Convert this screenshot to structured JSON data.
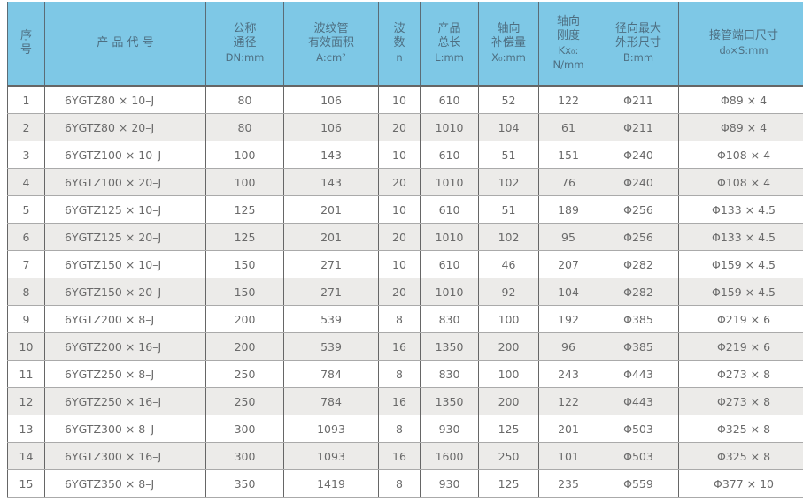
{
  "header": {
    "no": [
      "序",
      "号"
    ],
    "code": "产 品 代 号",
    "dn": [
      "公称",
      "通径",
      "DN:mm"
    ],
    "area": [
      "波纹管",
      "有效面积",
      "A:cm²"
    ],
    "waves": [
      "波",
      "数",
      "n"
    ],
    "length": [
      "产品",
      "总长",
      "L:mm"
    ],
    "comp": [
      "轴向",
      "补偿量",
      "X₀:mm"
    ],
    "stiff": [
      "轴向",
      "刚度",
      "Kx₀:",
      "N/mm"
    ],
    "outer": [
      "径向最大",
      "外形尺寸",
      "B:mm"
    ],
    "port": [
      "接管端口尺寸",
      "d₀×S:mm"
    ]
  },
  "rows": [
    [
      "1",
      "6YGTZ80 × 10–J",
      "80",
      "106",
      "10",
      "610",
      "52",
      "122",
      "Φ211",
      "Φ89 × 4"
    ],
    [
      "2",
      "6YGTZ80 × 20–J",
      "80",
      "106",
      "20",
      "1010",
      "104",
      "61",
      "Φ211",
      "Φ89 × 4"
    ],
    [
      "3",
      "6YGTZ100 × 10–J",
      "100",
      "143",
      "10",
      "610",
      "51",
      "151",
      "Φ240",
      "Φ108 × 4"
    ],
    [
      "4",
      "6YGTZ100 × 20–J",
      "100",
      "143",
      "20",
      "1010",
      "102",
      "76",
      "Φ240",
      "Φ108 × 4"
    ],
    [
      "5",
      "6YGTZ125 × 10–J",
      "125",
      "201",
      "10",
      "610",
      "51",
      "189",
      "Φ256",
      "Φ133 × 4.5"
    ],
    [
      "6",
      "6YGTZ125 × 20–J",
      "125",
      "201",
      "20",
      "1010",
      "102",
      "95",
      "Φ256",
      "Φ133 × 4.5"
    ],
    [
      "7",
      "6YGTZ150 × 10–J",
      "150",
      "271",
      "10",
      "610",
      "46",
      "207",
      "Φ282",
      "Φ159 × 4.5"
    ],
    [
      "8",
      "6YGTZ150 × 20–J",
      "150",
      "271",
      "20",
      "1010",
      "92",
      "104",
      "Φ282",
      "Φ159 × 4.5"
    ],
    [
      "9",
      "6YGTZ200 × 8–J",
      "200",
      "539",
      "8",
      "830",
      "100",
      "192",
      "Φ385",
      "Φ219 × 6"
    ],
    [
      "10",
      "6YGTZ200 × 16–J",
      "200",
      "539",
      "16",
      "1350",
      "200",
      "96",
      "Φ385",
      "Φ219 × 6"
    ],
    [
      "11",
      "6YGTZ250 × 8–J",
      "250",
      "784",
      "8",
      "830",
      "100",
      "243",
      "Φ443",
      "Φ273 × 8"
    ],
    [
      "12",
      "6YGTZ250 × 16–J",
      "250",
      "784",
      "16",
      "1350",
      "200",
      "122",
      "Φ443",
      "Φ273 × 8"
    ],
    [
      "13",
      "6YGTZ300 × 8–J",
      "300",
      "1093",
      "8",
      "930",
      "125",
      "201",
      "Φ503",
      "Φ325 × 8"
    ],
    [
      "14",
      "6YGTZ300 × 16–J",
      "300",
      "1093",
      "16",
      "1600",
      "250",
      "101",
      "Φ503",
      "Φ325 × 8"
    ],
    [
      "15",
      "6YGTZ350 × 8–J",
      "350",
      "1419",
      "8",
      "930",
      "125",
      "235",
      "Φ559",
      "Φ377 × 10"
    ]
  ],
  "colors": {
    "header_bg": "#7ec8e6",
    "even_row_bg": "#ecebe9"
  }
}
